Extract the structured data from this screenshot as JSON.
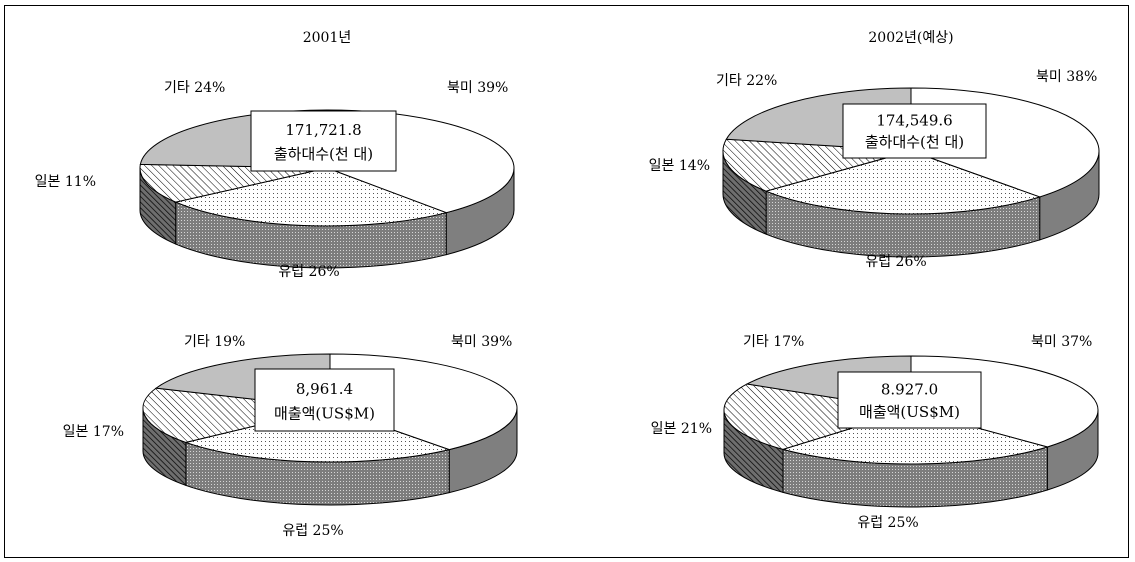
{
  "chart_data": [
    {
      "type": "pie",
      "title": "2001년",
      "total": "171,721.8",
      "total_label": "출하대수(천 대)",
      "slices": [
        {
          "label": "북미",
          "value": 39,
          "text": "북미 39%"
        },
        {
          "label": "유럽",
          "value": 26,
          "text": "유럽 26%"
        },
        {
          "label": "일본",
          "value": 11,
          "text": "일본 11%"
        },
        {
          "label": "기타",
          "value": 24,
          "text": "기타 24%"
        }
      ]
    },
    {
      "type": "pie",
      "title": "2002년(예상)",
      "total": "174,549.6",
      "total_label": "출하대수(천 대)",
      "slices": [
        {
          "label": "북미",
          "value": 38,
          "text": "북미 38%"
        },
        {
          "label": "유럽",
          "value": 26,
          "text": "유럽 26%"
        },
        {
          "label": "일본",
          "value": 14,
          "text": "일본 14%"
        },
        {
          "label": "기타",
          "value": 22,
          "text": "기타 22%"
        }
      ]
    },
    {
      "type": "pie",
      "title": "",
      "total": "8,961.4",
      "total_label": "매출액(US$M)",
      "slices": [
        {
          "label": "북미",
          "value": 39,
          "text": "북미 39%"
        },
        {
          "label": "유럽",
          "value": 25,
          "text": "유럽 25%"
        },
        {
          "label": "일본",
          "value": 17,
          "text": "일본 17%"
        },
        {
          "label": "기타",
          "value": 19,
          "text": "기타 19%"
        }
      ]
    },
    {
      "type": "pie",
      "title": "",
      "total": "8.927.0",
      "total_label": "매출액(US$M)",
      "slices": [
        {
          "label": "북미",
          "value": 37,
          "text": "북미 37%"
        },
        {
          "label": "유럽",
          "value": 25,
          "text": "유럽 25%"
        },
        {
          "label": "일본",
          "value": 21,
          "text": "일본 21%"
        },
        {
          "label": "기타",
          "value": 17,
          "text": "기타 17%"
        }
      ]
    }
  ],
  "colors": {
    "north_america_top": "#ffffff",
    "north_america_side": "#7f7f7f",
    "europe_top": "#ffffff",
    "europe_side": "#808080",
    "japan_hatch": "#000000",
    "japan_side": "#555555",
    "other_top": "#c0c0c0",
    "other_side": "#9a9a9a"
  }
}
